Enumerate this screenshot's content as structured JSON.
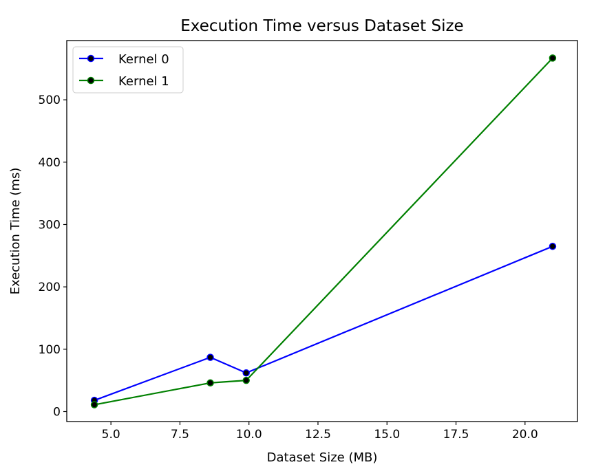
{
  "chart_data": {
    "type": "line",
    "title": "Execution Time versus Dataset Size",
    "xlabel": "Dataset Size (MB)",
    "ylabel": "Execution Time (ms)",
    "xlim": [
      3.4,
      21.9
    ],
    "ylim": [
      -16,
      595
    ],
    "xticks": [
      5.0,
      7.5,
      10.0,
      12.5,
      15.0,
      17.5,
      20.0
    ],
    "xtick_labels": [
      "5.0",
      "7.5",
      "10.0",
      "12.5",
      "15.0",
      "17.5",
      "20.0"
    ],
    "yticks": [
      0,
      100,
      200,
      300,
      400,
      500
    ],
    "ytick_labels": [
      "0",
      "100",
      "200",
      "300",
      "400",
      "500"
    ],
    "grid": false,
    "legend_position": "top-left",
    "series": [
      {
        "name": "Kernel 0",
        "color": "#0000ff",
        "marker_face": "#000000",
        "x": [
          4.4,
          8.6,
          9.9,
          21.0
        ],
        "y": [
          18,
          87,
          62,
          265
        ]
      },
      {
        "name": "Kernel 1",
        "color": "#008000",
        "marker_face": "#000000",
        "x": [
          4.4,
          8.6,
          9.9,
          21.0
        ],
        "y": [
          11,
          46,
          50,
          567
        ]
      }
    ]
  }
}
